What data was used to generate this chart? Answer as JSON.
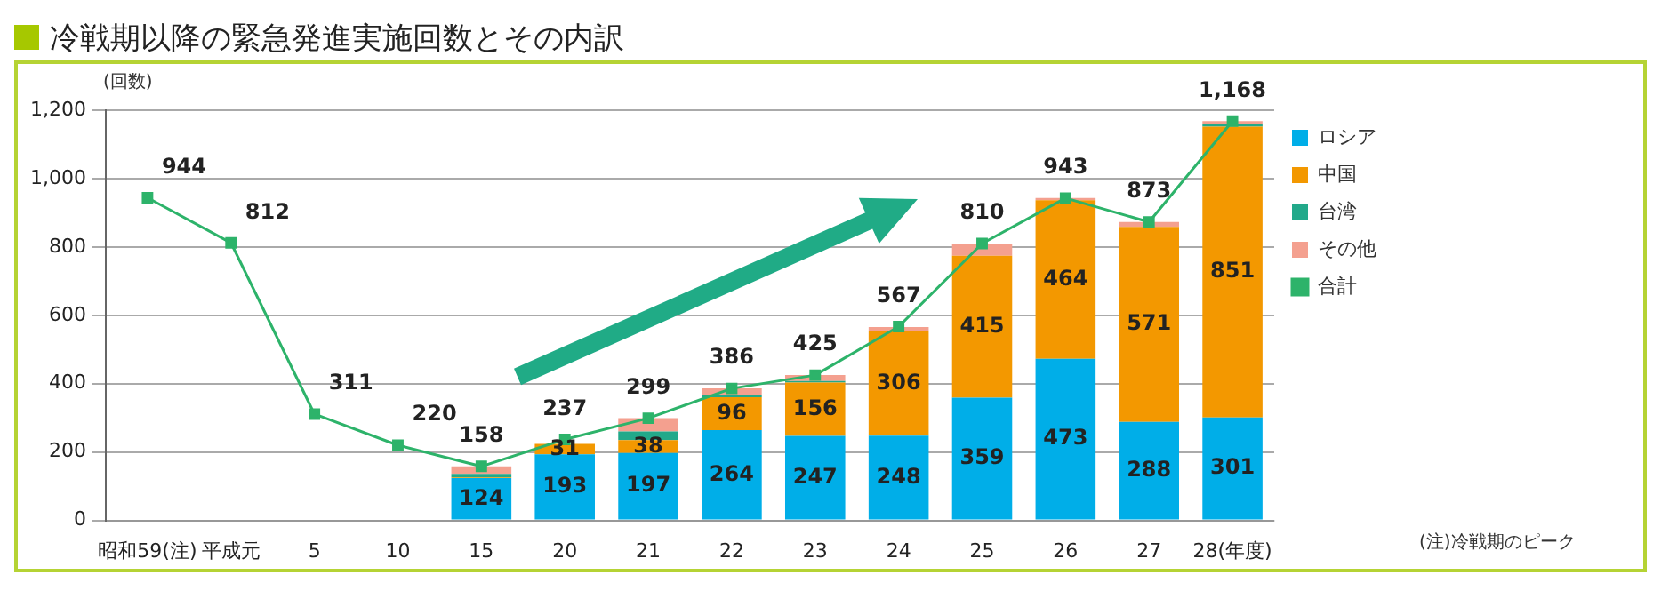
{
  "chart_data": {
    "type": "bar",
    "title": "冷戦期以降の緊急発進実施回数とその内訳",
    "ylabel": "(回数)",
    "stacked": true,
    "categories": [
      "昭和59(注)",
      "平成元",
      "5",
      "10",
      "15",
      "20",
      "21",
      "22",
      "23",
      "24",
      "25",
      "26",
      "27",
      "28(年度)"
    ],
    "series": [
      {
        "name": "ロシア",
        "color": "#00aee8",
        "values": [
          null,
          null,
          null,
          null,
          124,
          193,
          197,
          264,
          247,
          248,
          359,
          473,
          288,
          301
        ],
        "value_labels": [
          null,
          null,
          null,
          null,
          "124",
          "193",
          "197",
          "264",
          "247",
          "248",
          "359",
          "473",
          "288",
          "301"
        ]
      },
      {
        "name": "中国",
        "color": "#f39800",
        "values": [
          null,
          null,
          null,
          null,
          2,
          31,
          38,
          96,
          156,
          306,
          415,
          464,
          571,
          851
        ],
        "value_labels": [
          null,
          null,
          null,
          null,
          null,
          "31",
          "38",
          "96",
          "156",
          "306",
          "415",
          "464",
          "571",
          "851"
        ]
      },
      {
        "name": "台湾",
        "color": "#22a98a",
        "values": [
          null,
          null,
          null,
          null,
          10,
          null,
          25,
          7,
          5,
          null,
          0,
          0,
          0,
          8
        ]
      },
      {
        "name": "その他",
        "color": "#f4a08f",
        "values": [
          null,
          null,
          null,
          null,
          22,
          null,
          39,
          19,
          17,
          12,
          36,
          6,
          14,
          8
        ]
      },
      {
        "name": "合計",
        "type": "line",
        "color": "#2db36a",
        "marker": "square",
        "values": [
          944,
          812,
          311,
          220,
          158,
          237,
          299,
          386,
          425,
          567,
          810,
          943,
          873,
          1168
        ],
        "value_labels": [
          "944",
          "812",
          "311",
          "220",
          "158",
          "237",
          "299",
          "386",
          "425",
          "567",
          "810",
          "943",
          "873",
          "1,168"
        ]
      }
    ],
    "ylim": [
      0,
      1200
    ],
    "yticks": [
      0,
      200,
      400,
      600,
      800,
      {
        "value": 1000,
        "label": "1,000"
      },
      {
        "value": 1200,
        "label": "1,200"
      }
    ],
    "grid": "y",
    "legend": "top right",
    "annotations": [
      "(注)冷戦期のピーク"
    ]
  }
}
